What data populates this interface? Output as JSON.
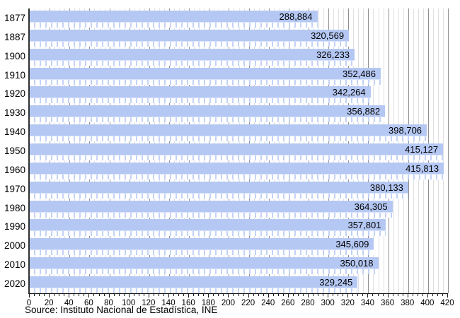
{
  "chart_data": {
    "type": "bar",
    "orientation": "horizontal",
    "title": "",
    "xlabel": "",
    "ylabel": "",
    "categories": [
      "1877",
      "1887",
      "1900",
      "1910",
      "1920",
      "1930",
      "1940",
      "1950",
      "1960",
      "1970",
      "1980",
      "1990",
      "2000",
      "2010",
      "2020"
    ],
    "values": [
      288884,
      320569,
      326233,
      352486,
      342264,
      356882,
      398706,
      415127,
      415813,
      380133,
      364305,
      357801,
      345609,
      350018,
      329245
    ],
    "value_labels": [
      "288,884",
      "320,569",
      "326,233",
      "352,486",
      "342,264",
      "356,882",
      "398,706",
      "415,127",
      "415,813",
      "380,133",
      "364,305",
      "357,801",
      "345,609",
      "350,018",
      "329,245"
    ],
    "x_axis_unit_divisor": 1000,
    "xlim": [
      0,
      420
    ],
    "x_major_tick_step": 20,
    "x_minor_tick_step": 5,
    "x_tick_labels": [
      "0",
      "20",
      "40",
      "60",
      "80",
      "100",
      "120",
      "140",
      "160",
      "180",
      "200",
      "220",
      "240",
      "260",
      "280",
      "300",
      "320",
      "340",
      "360",
      "380",
      "400",
      "420"
    ],
    "grid": true,
    "legend": "none",
    "source": "Source: Instituto Nacional de Estadística, INE",
    "colors": {
      "bar_fill": "#b5c8f3",
      "bar_texture_dash": "#ffffff",
      "bar_texture_gap": "#c3d2f6",
      "gridline_minor": "#e0e0e0",
      "gridline_major": "#8f8f8f",
      "axis": "#1a1a1a",
      "text": "#000000",
      "background": "#ffffff"
    }
  }
}
